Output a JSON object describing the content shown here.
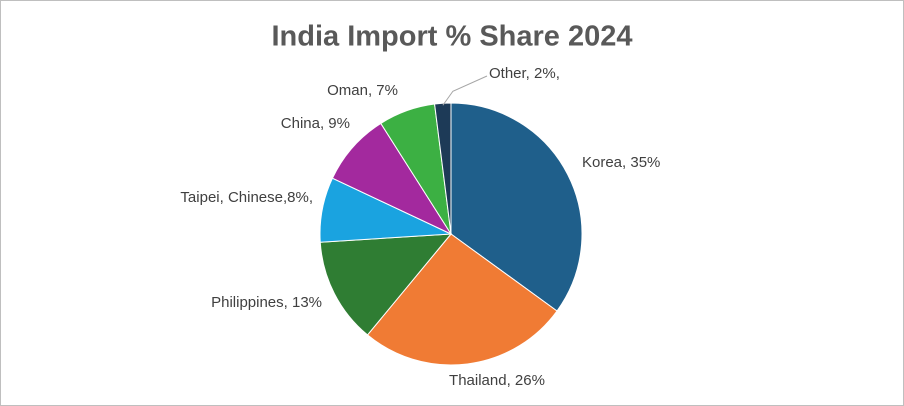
{
  "chart_data": {
    "type": "pie",
    "title": "India Import % Share 2024",
    "values": [
      35,
      26,
      13,
      8,
      9,
      7,
      2
    ],
    "value_labels": [
      "Korea, 35%",
      "Thailand, 26%",
      "Philippines, 13%",
      "Taipei, Chinese,8%,",
      "China, 9%",
      "Oman, 7%",
      "Other, 2%,"
    ],
    "colors": [
      "#1f5f8b",
      "#f07b34",
      "#2f7d33",
      "#1aa3e0",
      "#a3299e",
      "#3cb043",
      "#1d3a57"
    ]
  }
}
